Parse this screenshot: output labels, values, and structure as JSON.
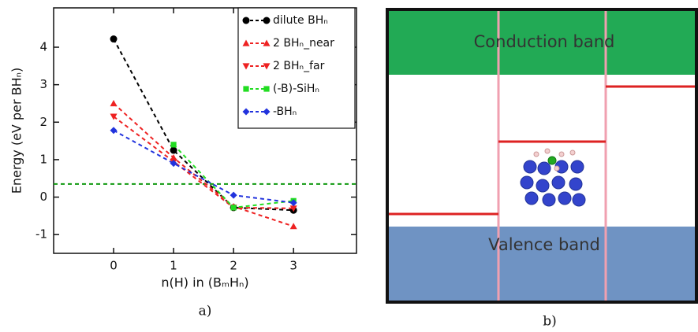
{
  "chart_data": {
    "type": "line",
    "caption": "a)",
    "xlabel": "n(H) in (BₘHₙ)",
    "ylabel": "Energy (eV per BHₙ)",
    "x": [
      0,
      1,
      2,
      3
    ],
    "series": [
      {
        "name": "dilute BHₙ",
        "color": "#000000",
        "marker": "circle",
        "values": [
          4.22,
          1.25,
          -0.28,
          -0.35
        ]
      },
      {
        "name": "2 BHₙ_near",
        "color": "#ee2222",
        "marker": "triangle-up",
        "values": [
          2.5,
          1.05,
          -0.25,
          -0.78
        ]
      },
      {
        "name": "2 BHₙ_far",
        "color": "#ee2222",
        "marker": "triangle-down",
        "values": [
          2.15,
          0.95,
          -0.28,
          -0.3
        ]
      },
      {
        "name": "(-B)-SiHₙ",
        "color": "#22dd22",
        "marker": "square",
        "values": [
          null,
          1.4,
          -0.28,
          -0.1
        ]
      },
      {
        "name": "-BHₙ",
        "color": "#2233dd",
        "marker": "diamond",
        "values": [
          1.78,
          0.9,
          0.05,
          -0.15
        ]
      }
    ],
    "reference_line": {
      "y": 0.35,
      "color": "#119911"
    },
    "xlim": [
      -1,
      4.05
    ],
    "xticks": [
      0,
      1,
      2,
      3
    ],
    "ylim": [
      -1.5,
      5.05
    ],
    "yticks": [
      -1,
      0,
      1,
      2,
      3,
      4
    ],
    "legend": "upper right"
  },
  "diagram": {
    "conduction_band": "Conduction band",
    "valence_band": "Valence band",
    "caption": "b)"
  }
}
